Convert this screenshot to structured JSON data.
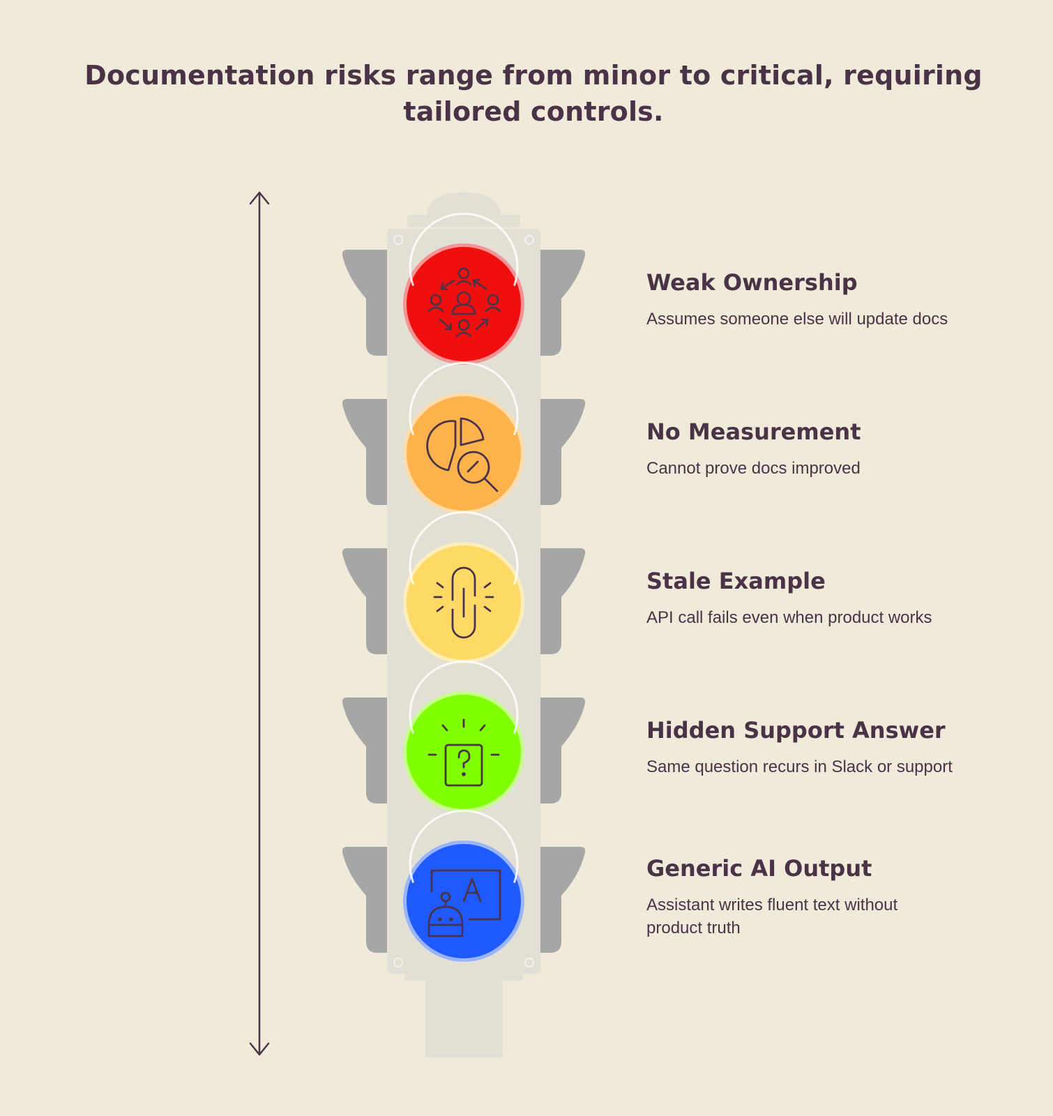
{
  "title": "Documentation risks range from minor to critical, requiring tailored controls.",
  "colors": {
    "background": "#f0eada",
    "text": "#4a3347",
    "housing": "#e2dfd5",
    "visor": "#a6a6a6"
  },
  "lights": [
    {
      "title": "Weak Ownership",
      "description": "Assumes someone else will update docs",
      "color": "#f00f0f",
      "icon": "people-cycle-icon"
    },
    {
      "title": "No Measurement",
      "description": "Cannot prove docs improved",
      "color": "#feb24c",
      "icon": "pie-chart-magnifier-icon"
    },
    {
      "title": "Stale Example",
      "description": "API call fails even when product works",
      "color": "#ffd966",
      "icon": "broken-link-icon"
    },
    {
      "title": "Hidden Support Answer",
      "description": "Same question recurs in Slack or support",
      "color": "#80ff00",
      "icon": "question-alert-icon"
    },
    {
      "title": "Generic AI Output",
      "description": "Assistant writes fluent text without product truth",
      "color": "#1f5aff",
      "icon": "robot-text-icon"
    }
  ]
}
